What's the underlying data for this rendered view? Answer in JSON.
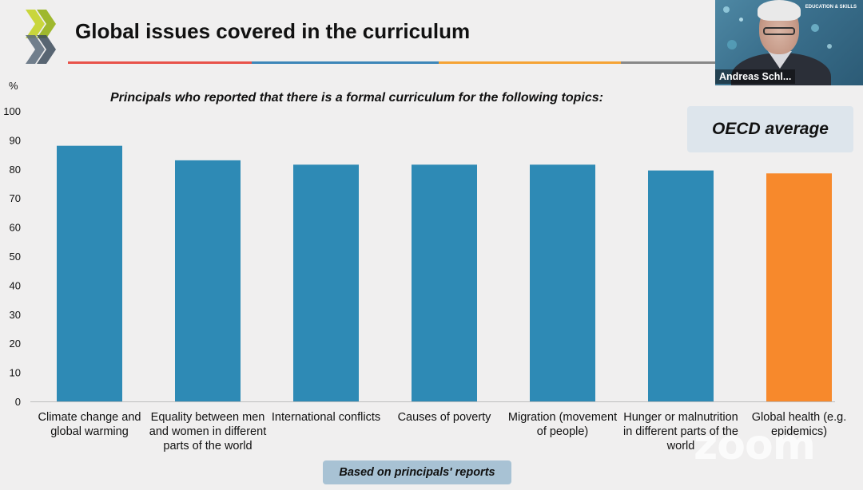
{
  "slide": {
    "title": "Global issues covered in the curriculum",
    "subtitle": "Principals who reported that there is a formal curriculum for the following topics:",
    "y_unit": "%",
    "legend_box": "OECD average",
    "footnote": "Based on principals' reports",
    "title_rule_colors": [
      "#e8524a",
      "#3d86b8",
      "#f5a334",
      "#888888"
    ]
  },
  "chart_data": {
    "type": "bar",
    "categories": [
      "Climate change and global warming",
      "Equality between men and women in different parts of the world",
      "International conflicts",
      "Causes of poverty",
      "Migration (movement of people)",
      "Hunger or malnutrition in different parts of the world",
      "Global health (e.g. epidemics)"
    ],
    "values": [
      88,
      83,
      81.5,
      81.5,
      81.5,
      79.5,
      78.5
    ],
    "bar_colors": [
      "#2e8ab5",
      "#2e8ab5",
      "#2e8ab5",
      "#2e8ab5",
      "#2e8ab5",
      "#2e8ab5",
      "#f7892c"
    ],
    "ylim": [
      0,
      100
    ],
    "yticks": [
      0,
      10,
      20,
      30,
      40,
      50,
      60,
      70,
      80,
      90,
      100
    ],
    "ylabel": "%"
  },
  "video": {
    "participant_name": "Andreas Schl...",
    "brand_text": "EDUCATION & SKILLS"
  },
  "overlay": {
    "watermark": "zoom"
  }
}
